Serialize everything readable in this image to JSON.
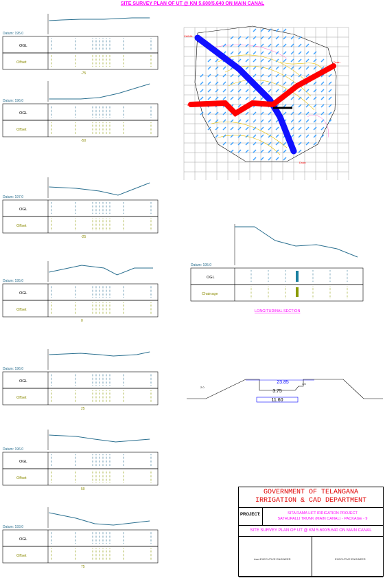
{
  "title": "SITE SURVEY PLAN OF UT @ KM 5.600/5.640 ON MAIN CANAL",
  "cross_sections": [
    {
      "datum": "Datum: 195.0",
      "offset_label": "-75",
      "row1": "OGL",
      "row2": "Offset"
    },
    {
      "datum": "Datum: 196.0",
      "offset_label": "-50",
      "row1": "OGL",
      "row2": "Offset"
    },
    {
      "datum": "Datum: 197.0",
      "offset_label": "-25",
      "row1": "OGL",
      "row2": "Offset"
    },
    {
      "datum": "Datum: 195.0",
      "offset_label": "0",
      "row1": "OGL",
      "row2": "Offset"
    },
    {
      "datum": "Datum: 196.0",
      "offset_label": "25",
      "row1": "OGL",
      "row2": "Offset"
    },
    {
      "datum": "Datum: 196.0",
      "offset_label": "50",
      "row1": "OGL",
      "row2": "Offset"
    },
    {
      "datum": "Datum: 193.0",
      "offset_label": "75",
      "row1": "OGL",
      "row2": "Offset"
    }
  ],
  "plan": {
    "label_a": "CANAL",
    "label_b": "Drain",
    "label_c": "Drain",
    "label_d": "Drain",
    "label_e": "Drain"
  },
  "longitudinal": {
    "datum": "Datum: 195.0",
    "row1": "OGL",
    "row2": "Chainage",
    "caption": "LONGITUDINAL SECTION"
  },
  "canal_section": {
    "top_width": "23.85",
    "depth": "3.75",
    "bed_width": "11.60",
    "left_slope": "2.0",
    "right_slope": "1.5"
  },
  "title_block": {
    "line1": "GOVERNMENT OF TELANGANA",
    "line2": "IRRIGATION & CAD DEPARTMENT",
    "project_label": "PROJECT:",
    "project_line1": "SITA RAMA LIFT IRRIGATION PROJECT",
    "project_line2": "SATHUPALLI TRUNK (MAIN CANAL) - PACKAGE - 9",
    "sheet_title": "SITE SURVEY PLAN OF UT @ KM 5.600/5.640 ON MAIN CANAL",
    "sig_left": "Asst.EXECUTIVE ENGINEER",
    "sig_right": "EXECUTIVE ENGINEER"
  }
}
